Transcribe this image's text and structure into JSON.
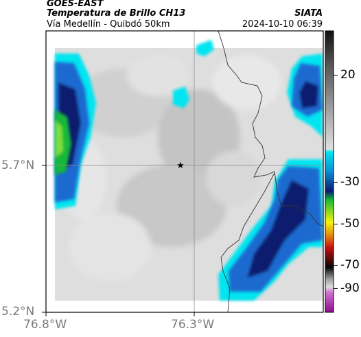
{
  "header": {
    "satellite": "GOES-EAST",
    "product": "Temperatura de Brillo CH13",
    "route": "Vía Medellín - Quibdó 50km",
    "organization": "SIATA",
    "timestamp": "2024-10-10 06:39"
  },
  "map": {
    "lat_labels": [
      "5.7°N",
      "5.2°N"
    ],
    "lon_labels": [
      "76.8°W",
      "76.3°W"
    ],
    "marker": "star",
    "colors": {
      "frame": "#000000",
      "grid": "#8c8c8c",
      "border": "#333333"
    }
  },
  "colorbar": {
    "ticks": [
      "20",
      "-30",
      "-50",
      "-70",
      "-90"
    ],
    "tick_values": [
      20,
      -30,
      -50,
      -70,
      -90
    ],
    "range": [
      -95,
      45
    ],
    "colors": {
      "warm_top": "#111111",
      "mid_gray": "#c8c8c8",
      "cyan": "#00e5f0",
      "blue": "#1f4bb0",
      "navy": "#0a1a6e",
      "green": "#17b83a",
      "yellow": "#f5f50a",
      "red": "#c81010",
      "black": "#050505",
      "purple": "#a020a0"
    }
  }
}
